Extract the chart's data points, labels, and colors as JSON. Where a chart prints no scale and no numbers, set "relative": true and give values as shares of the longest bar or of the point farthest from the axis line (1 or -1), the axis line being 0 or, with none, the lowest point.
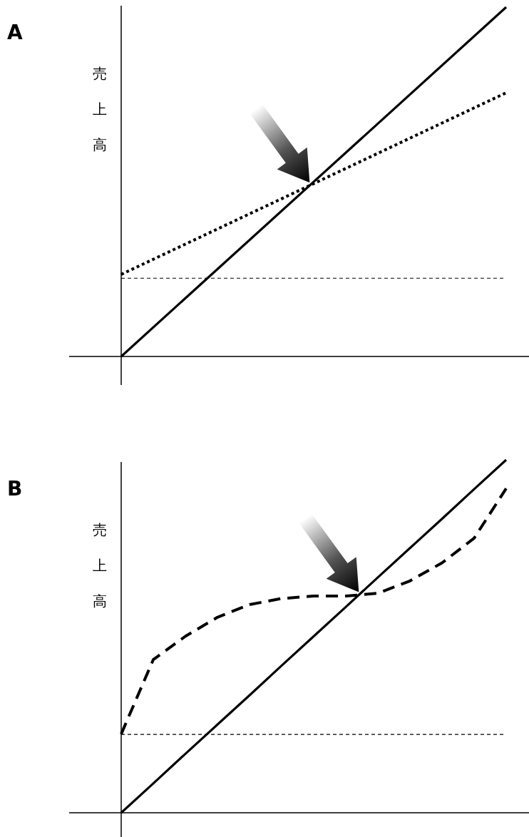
{
  "chart_data": [
    {
      "type": "line",
      "title": "A",
      "ylabel": "売上高",
      "relative": true,
      "categories": [
        null,
        null
      ],
      "series": [
        {
          "color": "#000000",
          "line_style": "solid",
          "values": [
            0,
            1
          ]
        },
        {
          "color": "#000000",
          "line_style": "dotted",
          "values": [
            0.235,
            0.755
          ]
        }
      ],
      "ref_lines": [
        {
          "axis": "y",
          "value": 0.224,
          "color": "#000000",
          "line_style": "dashed"
        }
      ]
    },
    {
      "type": "line",
      "title": "B",
      "ylabel": "売上高",
      "relative": true,
      "categories": [
        null,
        null,
        null,
        null,
        null,
        null,
        null,
        null,
        null,
        null,
        null,
        null,
        null
      ],
      "series": [
        {
          "color": "#000000",
          "line_style": "solid",
          "values": [
            0,
            0.083,
            0.167,
            0.25,
            0.333,
            0.417,
            0.5,
            0.583,
            0.667,
            0.75,
            0.833,
            0.917,
            1
          ]
        },
        {
          "color": "#000000",
          "line_style": "dashed",
          "values": [
            0.223,
            0.434,
            0.5,
            0.554,
            0.59,
            0.607,
            0.614,
            0.614,
            0.622,
            0.657,
            0.708,
            0.778,
            0.919
          ]
        }
      ],
      "ref_lines": [
        {
          "axis": "y",
          "value": 0.222,
          "color": "#000000",
          "line_style": "dashed"
        }
      ]
    }
  ]
}
